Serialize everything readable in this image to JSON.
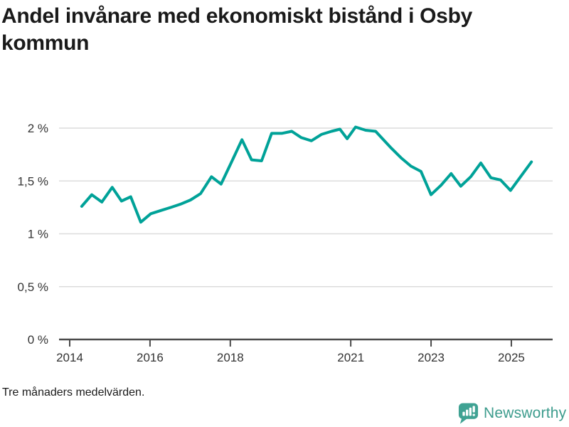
{
  "title": {
    "text": "Andel invånare med ekonomiskt bistånd i Osby kommun",
    "line1": "Andel invånare med ekonomiskt bistånd i Osby",
    "line2": "kommun"
  },
  "footnote": "Tre månaders medelvärden.",
  "branding": {
    "name": "Newsworthy",
    "logo_icon": "bar-chart-speech-bubble",
    "logo_color": "#3fa293",
    "text_color": "#3d9c8d"
  },
  "colors": {
    "line": "#00a298",
    "grid": "#dcdcdc",
    "axis": "#4a4a4a",
    "tick_label": "#333333",
    "title": "#1a1a1a"
  },
  "chart_data": {
    "type": "line",
    "title": "Andel invånare med ekonomiskt bistånd i Osby kommun",
    "subtitle": "Tre månaders medelvärden.",
    "unit": "%",
    "xlabel": "",
    "ylabel": "",
    "grid": "horizontal-only",
    "legend": "none",
    "xlim": [
      2013.73,
      2026.03
    ],
    "ylim": [
      0,
      2.15
    ],
    "x_ticks": [
      2014,
      2016,
      2018,
      2021,
      2023,
      2025
    ],
    "x_tick_labels": [
      "2014",
      "2016",
      "2018",
      "2021",
      "2023",
      "2025"
    ],
    "y_ticks": [
      0,
      0.5,
      1,
      1.5,
      2
    ],
    "y_tick_labels": [
      "0 %",
      "0,5 %",
      "1 %",
      "1,5 %",
      "2 %"
    ],
    "series": [
      {
        "name": "Andel invånare med ekonomiskt bistånd",
        "x": [
          2014.3,
          2014.55,
          2014.8,
          2015.06,
          2015.29,
          2015.52,
          2015.77,
          2016.02,
          2016.27,
          2016.52,
          2016.76,
          2017.01,
          2017.26,
          2017.53,
          2017.77,
          2018.02,
          2018.29,
          2018.53,
          2018.78,
          2019.03,
          2019.28,
          2019.53,
          2019.77,
          2020.02,
          2020.27,
          2020.52,
          2020.73,
          2020.91,
          2021.12,
          2021.37,
          2021.62,
          2022.01,
          2022.25,
          2022.5,
          2022.75,
          2023.0,
          2023.25,
          2023.5,
          2023.74,
          2023.99,
          2024.24,
          2024.49,
          2024.73,
          2024.98,
          2025.23,
          2025.5
        ],
        "y": [
          1.26,
          1.37,
          1.3,
          1.44,
          1.31,
          1.35,
          1.11,
          1.19,
          1.22,
          1.25,
          1.28,
          1.32,
          1.38,
          1.54,
          1.47,
          1.67,
          1.89,
          1.7,
          1.69,
          1.95,
          1.95,
          1.97,
          1.91,
          1.88,
          1.94,
          1.97,
          1.99,
          1.9,
          2.01,
          1.98,
          1.97,
          1.81,
          1.72,
          1.64,
          1.59,
          1.37,
          1.46,
          1.57,
          1.45,
          1.54,
          1.67,
          1.53,
          1.51,
          1.41,
          1.54,
          1.68
        ]
      }
    ]
  }
}
